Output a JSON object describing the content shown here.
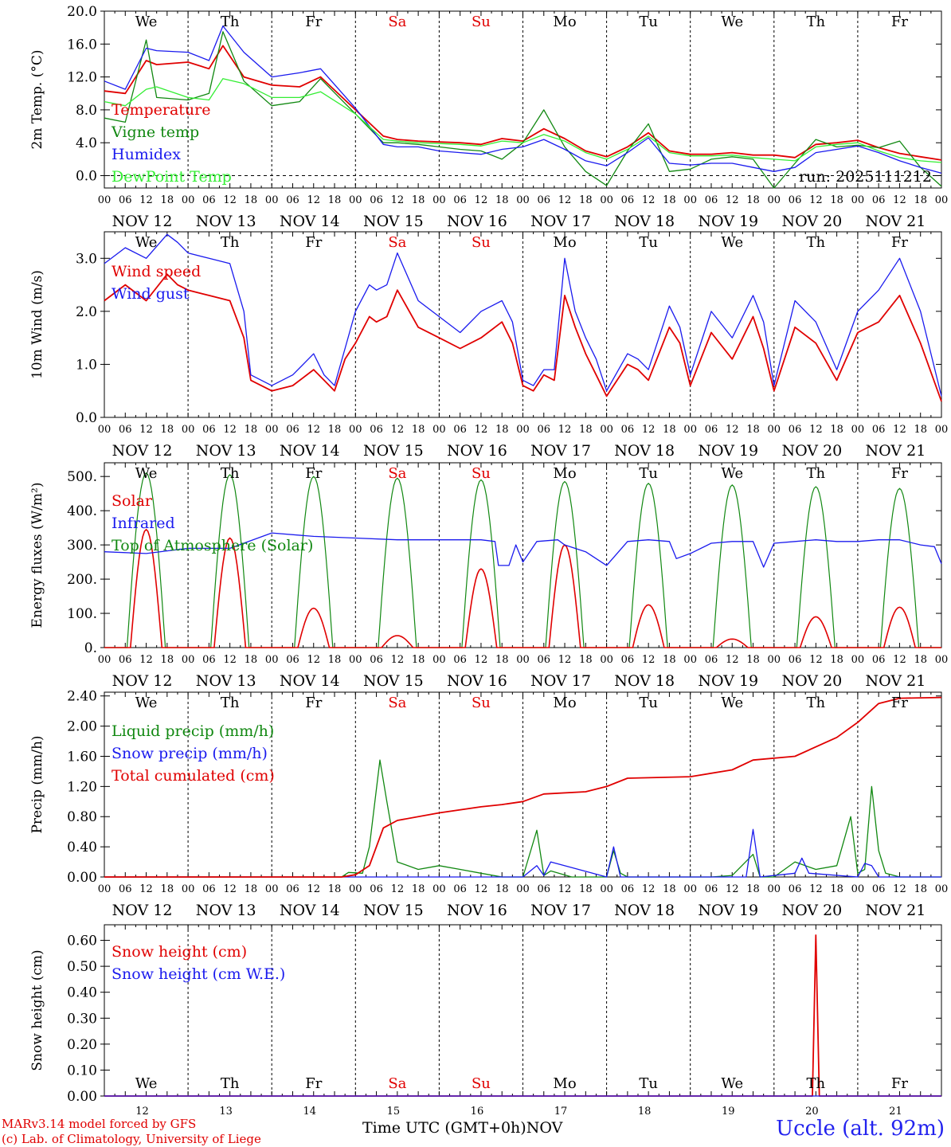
{
  "colors": {
    "red": "#e00000",
    "green": "#118811",
    "blue": "#1a1aee",
    "lightgreen": "#33ee33",
    "black": "#000000"
  },
  "days": {
    "names": [
      "We",
      "Th",
      "Fr",
      "Sa",
      "Su",
      "Mo",
      "Tu",
      "We",
      "Th",
      "Fr"
    ],
    "weekend": [
      false,
      false,
      false,
      true,
      true,
      false,
      false,
      false,
      false,
      false
    ],
    "dates": [
      "NOV 12",
      "NOV 13",
      "NOV 14",
      "NOV 15",
      "NOV 16",
      "NOV 17",
      "NOV 18",
      "NOV 19",
      "NOV 20",
      "NOV 21"
    ],
    "numbers": [
      "12",
      "13",
      "14",
      "15",
      "16",
      "17",
      "18",
      "19",
      "20",
      "21"
    ],
    "hour_ticks": [
      "00",
      "06",
      "12",
      "18"
    ]
  },
  "run_label": "run: 2025111212",
  "footer": {
    "credit_line1": "MARv3.14 model forced by GFS",
    "credit_line2": "(c) Lab. of Climatology, University of Liege",
    "x_title": "Time UTC (GMT+0h)",
    "x_month": "NOV",
    "station": "Uccle (alt. 92m)"
  },
  "chart_data": [
    {
      "type": "line",
      "ylabel": "2m Temp. (°C)",
      "ylim": [
        -1.5,
        20
      ],
      "yticks": [
        "0.0",
        "4.0",
        "8.0",
        "12.0",
        "16.0",
        "20.0"
      ],
      "ytick_values": [
        0,
        4,
        8,
        12,
        16,
        20
      ],
      "zero_line": true,
      "x_hours": [
        0,
        240
      ],
      "series": [
        {
          "name": "Temperature",
          "color": "red",
          "x": [
            0,
            6,
            12,
            15,
            24,
            30,
            34,
            40,
            48,
            56,
            62,
            72,
            80,
            84,
            90,
            96,
            102,
            108,
            114,
            120,
            126,
            132,
            138,
            144,
            150,
            156,
            162,
            168,
            174,
            180,
            186,
            192,
            198,
            204,
            210,
            216,
            222,
            228,
            234,
            240
          ],
          "values": [
            10.3,
            10.0,
            14.0,
            13.5,
            13.8,
            13.0,
            15.8,
            12.0,
            11.0,
            10.8,
            12.0,
            8.0,
            4.8,
            4.4,
            4.2,
            4.1,
            4.0,
            3.8,
            4.5,
            4.2,
            5.7,
            4.5,
            3.0,
            2.3,
            3.5,
            5.2,
            3.0,
            2.6,
            2.6,
            2.8,
            2.5,
            2.5,
            2.2,
            3.8,
            4.0,
            4.3,
            3.4,
            2.7,
            2.3,
            1.9
          ]
        },
        {
          "name": "Vigne temp",
          "color": "green",
          "x": [
            0,
            6,
            12,
            15,
            24,
            30,
            34,
            40,
            48,
            56,
            62,
            72,
            80,
            84,
            90,
            96,
            102,
            108,
            114,
            120,
            126,
            132,
            138,
            144,
            150,
            156,
            162,
            168,
            174,
            180,
            186,
            192,
            198,
            204,
            210,
            216,
            222,
            228,
            234,
            240
          ],
          "values": [
            7.0,
            6.5,
            16.5,
            9.5,
            9.2,
            10.0,
            17.5,
            11.5,
            8.5,
            9.0,
            11.8,
            7.5,
            4.0,
            4.0,
            3.8,
            3.5,
            3.2,
            3.0,
            2.0,
            4.0,
            8.0,
            3.5,
            0.5,
            -1.2,
            3.0,
            6.3,
            0.5,
            0.8,
            2.0,
            2.3,
            2.0,
            -1.5,
            1.5,
            4.4,
            3.5,
            3.7,
            3.4,
            4.2,
            1.0,
            -1.3
          ]
        },
        {
          "name": "Humidex",
          "color": "blue",
          "x": [
            0,
            6,
            12,
            15,
            24,
            30,
            34,
            40,
            48,
            56,
            62,
            72,
            80,
            84,
            90,
            96,
            102,
            108,
            114,
            120,
            126,
            132,
            138,
            144,
            150,
            156,
            162,
            168,
            174,
            180,
            186,
            192,
            198,
            204,
            210,
            216,
            222,
            228,
            234,
            240
          ],
          "values": [
            11.5,
            10.5,
            15.5,
            15.2,
            15.0,
            14.0,
            18.2,
            15.0,
            12.0,
            12.5,
            13.0,
            8.2,
            3.8,
            3.5,
            3.5,
            3.0,
            2.8,
            2.6,
            3.2,
            3.5,
            4.4,
            3.2,
            1.8,
            1.2,
            2.8,
            4.6,
            1.5,
            1.3,
            1.5,
            1.5,
            1.0,
            0.5,
            1.0,
            2.8,
            3.2,
            3.6,
            2.8,
            1.8,
            1.0,
            0.3
          ]
        },
        {
          "name": "DewPoint Temp",
          "color": "lightgreen",
          "x": [
            0,
            6,
            12,
            15,
            24,
            30,
            34,
            40,
            48,
            56,
            62,
            72,
            80,
            84,
            90,
            96,
            102,
            108,
            114,
            120,
            126,
            132,
            138,
            144,
            150,
            156,
            162,
            168,
            174,
            180,
            186,
            192,
            198,
            204,
            210,
            216,
            222,
            228,
            234,
            240
          ],
          "values": [
            9.0,
            8.5,
            10.5,
            10.8,
            9.5,
            9.2,
            11.8,
            11.2,
            9.5,
            9.5,
            10.2,
            7.5,
            4.4,
            4.2,
            4.0,
            3.9,
            3.8,
            3.6,
            4.2,
            4.0,
            5.0,
            4.2,
            2.8,
            2.0,
            3.2,
            4.8,
            2.8,
            2.4,
            2.4,
            2.5,
            2.2,
            2.0,
            1.8,
            3.5,
            3.8,
            4.0,
            3.0,
            2.2,
            1.8,
            1.6
          ]
        }
      ],
      "annotation": "run_label"
    },
    {
      "type": "line",
      "ylabel": "10m Wind (m/s)",
      "ylim": [
        0,
        3.5
      ],
      "yticks": [
        "0.0",
        "1.0",
        "2.0",
        "3.0"
      ],
      "ytick_values": [
        0,
        1,
        2,
        3
      ],
      "series": [
        {
          "name": "Wind speed",
          "color": "red",
          "x": [
            0,
            6,
            12,
            18,
            21,
            24,
            30,
            36,
            40,
            42,
            48,
            54,
            60,
            63,
            66,
            69,
            72,
            76,
            78,
            81,
            84,
            90,
            96,
            102,
            108,
            114,
            117,
            120,
            123,
            126,
            129,
            132,
            135,
            138,
            141,
            144,
            150,
            153,
            156,
            162,
            165,
            168,
            174,
            180,
            186,
            189,
            192,
            198,
            204,
            210,
            216,
            222,
            228,
            234,
            240
          ],
          "values": [
            2.2,
            2.5,
            2.2,
            2.7,
            2.5,
            2.4,
            2.3,
            2.2,
            1.5,
            0.7,
            0.5,
            0.6,
            0.9,
            0.7,
            0.5,
            1.1,
            1.4,
            1.9,
            1.8,
            1.9,
            2.4,
            1.7,
            1.5,
            1.3,
            1.5,
            1.8,
            1.4,
            0.6,
            0.5,
            0.8,
            0.7,
            2.3,
            1.7,
            1.2,
            0.8,
            0.4,
            1.0,
            0.9,
            0.7,
            1.7,
            1.4,
            0.6,
            1.6,
            1.1,
            1.9,
            1.3,
            0.5,
            1.7,
            1.4,
            0.7,
            1.6,
            1.8,
            2.3,
            1.4,
            0.3
          ]
        },
        {
          "name": "Wind gust",
          "color": "blue",
          "x": [
            0,
            6,
            12,
            18,
            21,
            24,
            30,
            36,
            40,
            42,
            48,
            54,
            60,
            63,
            66,
            69,
            72,
            76,
            78,
            81,
            84,
            90,
            96,
            102,
            108,
            114,
            117,
            120,
            123,
            126,
            129,
            132,
            135,
            138,
            141,
            144,
            150,
            153,
            156,
            162,
            165,
            168,
            174,
            180,
            186,
            189,
            192,
            198,
            204,
            210,
            216,
            222,
            228,
            234,
            240
          ],
          "values": [
            2.9,
            3.2,
            3.0,
            3.45,
            3.3,
            3.1,
            3.0,
            2.9,
            2.0,
            0.8,
            0.6,
            0.8,
            1.2,
            0.8,
            0.6,
            1.3,
            2.0,
            2.5,
            2.4,
            2.5,
            3.1,
            2.2,
            1.9,
            1.6,
            2.0,
            2.2,
            1.8,
            0.7,
            0.6,
            0.9,
            0.9,
            3.0,
            2.0,
            1.5,
            1.1,
            0.5,
            1.2,
            1.1,
            0.9,
            2.1,
            1.7,
            0.8,
            2.0,
            1.5,
            2.3,
            1.8,
            0.6,
            2.2,
            1.8,
            0.9,
            2.0,
            2.4,
            3.0,
            2.0,
            0.4
          ]
        }
      ]
    },
    {
      "type": "line",
      "ylabel": "Energy fluxes (W/m²)",
      "ylim": [
        0,
        540
      ],
      "yticks": [
        "0.",
        "100.",
        "200.",
        "300.",
        "400.",
        "500."
      ],
      "ytick_values": [
        0,
        100,
        200,
        300,
        400,
        500
      ],
      "diurnal": {
        "toa_peaks": [
          510,
          505,
          500,
          495,
          490,
          485,
          480,
          475,
          470,
          465
        ],
        "solar_peaks": [
          345,
          320,
          115,
          35,
          230,
          300,
          125,
          25,
          90,
          118
        ],
        "peak_hour": 12,
        "toa_half_width_h": 5.5,
        "solar_half_width_h": 4.5
      },
      "series": [
        {
          "name": "Solar",
          "color": "red"
        },
        {
          "name": "Infrared",
          "color": "blue",
          "x": [
            0,
            12,
            24,
            36,
            48,
            60,
            72,
            84,
            96,
            108,
            112,
            113,
            116,
            118,
            120,
            124,
            130,
            132,
            138,
            144,
            150,
            156,
            162,
            164,
            168,
            174,
            180,
            186,
            189,
            192,
            198,
            204,
            210,
            216,
            222,
            228,
            234,
            238,
            240
          ],
          "values": [
            280,
            275,
            290,
            290,
            335,
            325,
            320,
            315,
            315,
            315,
            310,
            240,
            240,
            300,
            250,
            310,
            315,
            300,
            280,
            240,
            310,
            315,
            310,
            260,
            275,
            305,
            310,
            310,
            235,
            305,
            310,
            315,
            310,
            310,
            315,
            315,
            300,
            295,
            245
          ]
        }
      ],
      "legend_extra": [
        {
          "name": "Top of Atmosphere (Solar)",
          "color": "green"
        }
      ]
    },
    {
      "type": "line",
      "ylabel": "Precip (mm/h)",
      "ylim": [
        0,
        2.45
      ],
      "yticks": [
        "0.00",
        "0.40",
        "0.80",
        "1.20",
        "1.60",
        "2.00",
        "2.40"
      ],
      "ytick_values": [
        0,
        0.4,
        0.8,
        1.2,
        1.6,
        2.0,
        2.4
      ],
      "series": [
        {
          "name": "Liquid precip (mm/h)",
          "color": "green",
          "x": [
            0,
            68,
            70,
            74,
            76,
            79,
            81,
            84,
            90,
            96,
            102,
            108,
            114,
            120,
            124,
            126,
            128,
            134,
            144,
            146,
            148,
            150,
            156,
            162,
            168,
            174,
            180,
            186,
            188,
            190,
            192,
            198,
            204,
            210,
            214,
            216,
            218,
            220,
            222,
            224,
            228,
            234,
            240
          ],
          "values": [
            0,
            0,
            0.06,
            0.05,
            0.4,
            1.55,
            1.0,
            0.2,
            0.1,
            0.15,
            0.1,
            0.05,
            0,
            0,
            0.62,
            0.02,
            0.08,
            0,
            0,
            0.35,
            0.05,
            0,
            0,
            0,
            0,
            0,
            0.02,
            0.3,
            0,
            0,
            0,
            0.2,
            0.1,
            0.15,
            0.8,
            0.05,
            0.1,
            1.2,
            0.35,
            0.05,
            0,
            0,
            0
          ]
        },
        {
          "name": "Snow precip (mm/h)",
          "color": "blue",
          "x": [
            0,
            120,
            124,
            126,
            128,
            144,
            146,
            148,
            184,
            186,
            188,
            198,
            200,
            202,
            216,
            218,
            220,
            222,
            240
          ],
          "values": [
            0,
            0,
            0.15,
            0.02,
            0.2,
            0,
            0.4,
            0,
            0,
            0.63,
            0,
            0.05,
            0.25,
            0.05,
            0,
            0.18,
            0.15,
            0,
            0
          ]
        },
        {
          "name": "Total cumulated (cm)",
          "color": "red",
          "x": [
            0,
            68,
            72,
            76,
            80,
            84,
            96,
            108,
            114,
            120,
            126,
            138,
            144,
            150,
            168,
            180,
            186,
            198,
            210,
            216,
            222,
            228,
            240
          ],
          "values": [
            0,
            0,
            0.03,
            0.15,
            0.65,
            0.75,
            0.85,
            0.93,
            0.96,
            1.0,
            1.1,
            1.13,
            1.2,
            1.31,
            1.33,
            1.42,
            1.55,
            1.6,
            1.85,
            2.05,
            2.3,
            2.37,
            2.38
          ]
        }
      ]
    },
    {
      "type": "line",
      "ylabel": "Snow height (cm)",
      "ylim": [
        0,
        0.66
      ],
      "yticks": [
        "0.00",
        "0.10",
        "0.20",
        "0.30",
        "0.40",
        "0.50",
        "0.60"
      ],
      "ytick_values": [
        0,
        0.1,
        0.2,
        0.3,
        0.4,
        0.5,
        0.6
      ],
      "series": [
        {
          "name": "Snow height (cm)",
          "color": "red",
          "x": [
            0,
            203,
            204,
            205,
            240
          ],
          "values": [
            0,
            0,
            0.62,
            0,
            0
          ]
        },
        {
          "name": "Snow height (cm W.E.)",
          "color": "blue",
          "x": [
            0,
            240
          ],
          "values": [
            0,
            0
          ]
        }
      ]
    }
  ]
}
